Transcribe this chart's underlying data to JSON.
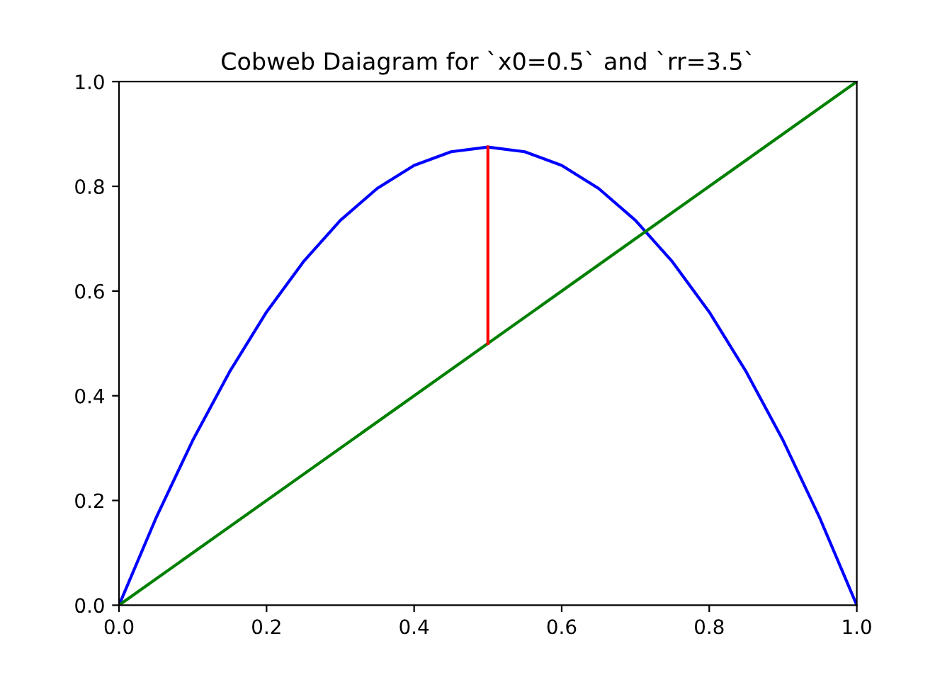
{
  "chart_data": {
    "type": "line",
    "title": "Cobweb Daiagram for `x0=0.5` and `rr=3.5`",
    "series": [
      {
        "color": "#0000ff",
        "x": [
          0,
          0.05,
          0.1,
          0.15,
          0.2,
          0.25,
          0.3,
          0.35,
          0.4,
          0.45,
          0.5,
          0.55,
          0.6,
          0.65,
          0.7,
          0.75,
          0.8,
          0.85,
          0.9,
          0.95,
          1
        ],
        "values": [
          0,
          0.166,
          0.315,
          0.446,
          0.56,
          0.656,
          0.735,
          0.796,
          0.84,
          0.866,
          0.875,
          0.866,
          0.84,
          0.796,
          0.735,
          0.656,
          0.56,
          0.446,
          0.315,
          0.166,
          0
        ]
      },
      {
        "color": "#008000",
        "x": [
          0,
          1
        ],
        "values": [
          0,
          1
        ]
      },
      {
        "color": "#ff0000",
        "x": [
          0.5,
          0.5
        ],
        "values": [
          0.5,
          0.875
        ]
      }
    ],
    "xlim": [
      0,
      1
    ],
    "ylim": [
      0,
      1
    ],
    "xticks": [
      {
        "value": 0,
        "label": "0.0"
      },
      0.2,
      0.4,
      0.6,
      0.8,
      {
        "value": 1,
        "label": "1.0"
      }
    ],
    "yticks": [
      {
        "value": 0,
        "label": "0.0"
      },
      0.2,
      0.4,
      0.6,
      0.8,
      {
        "value": 1,
        "label": "1.0"
      }
    ],
    "grid": false,
    "legend": false
  }
}
